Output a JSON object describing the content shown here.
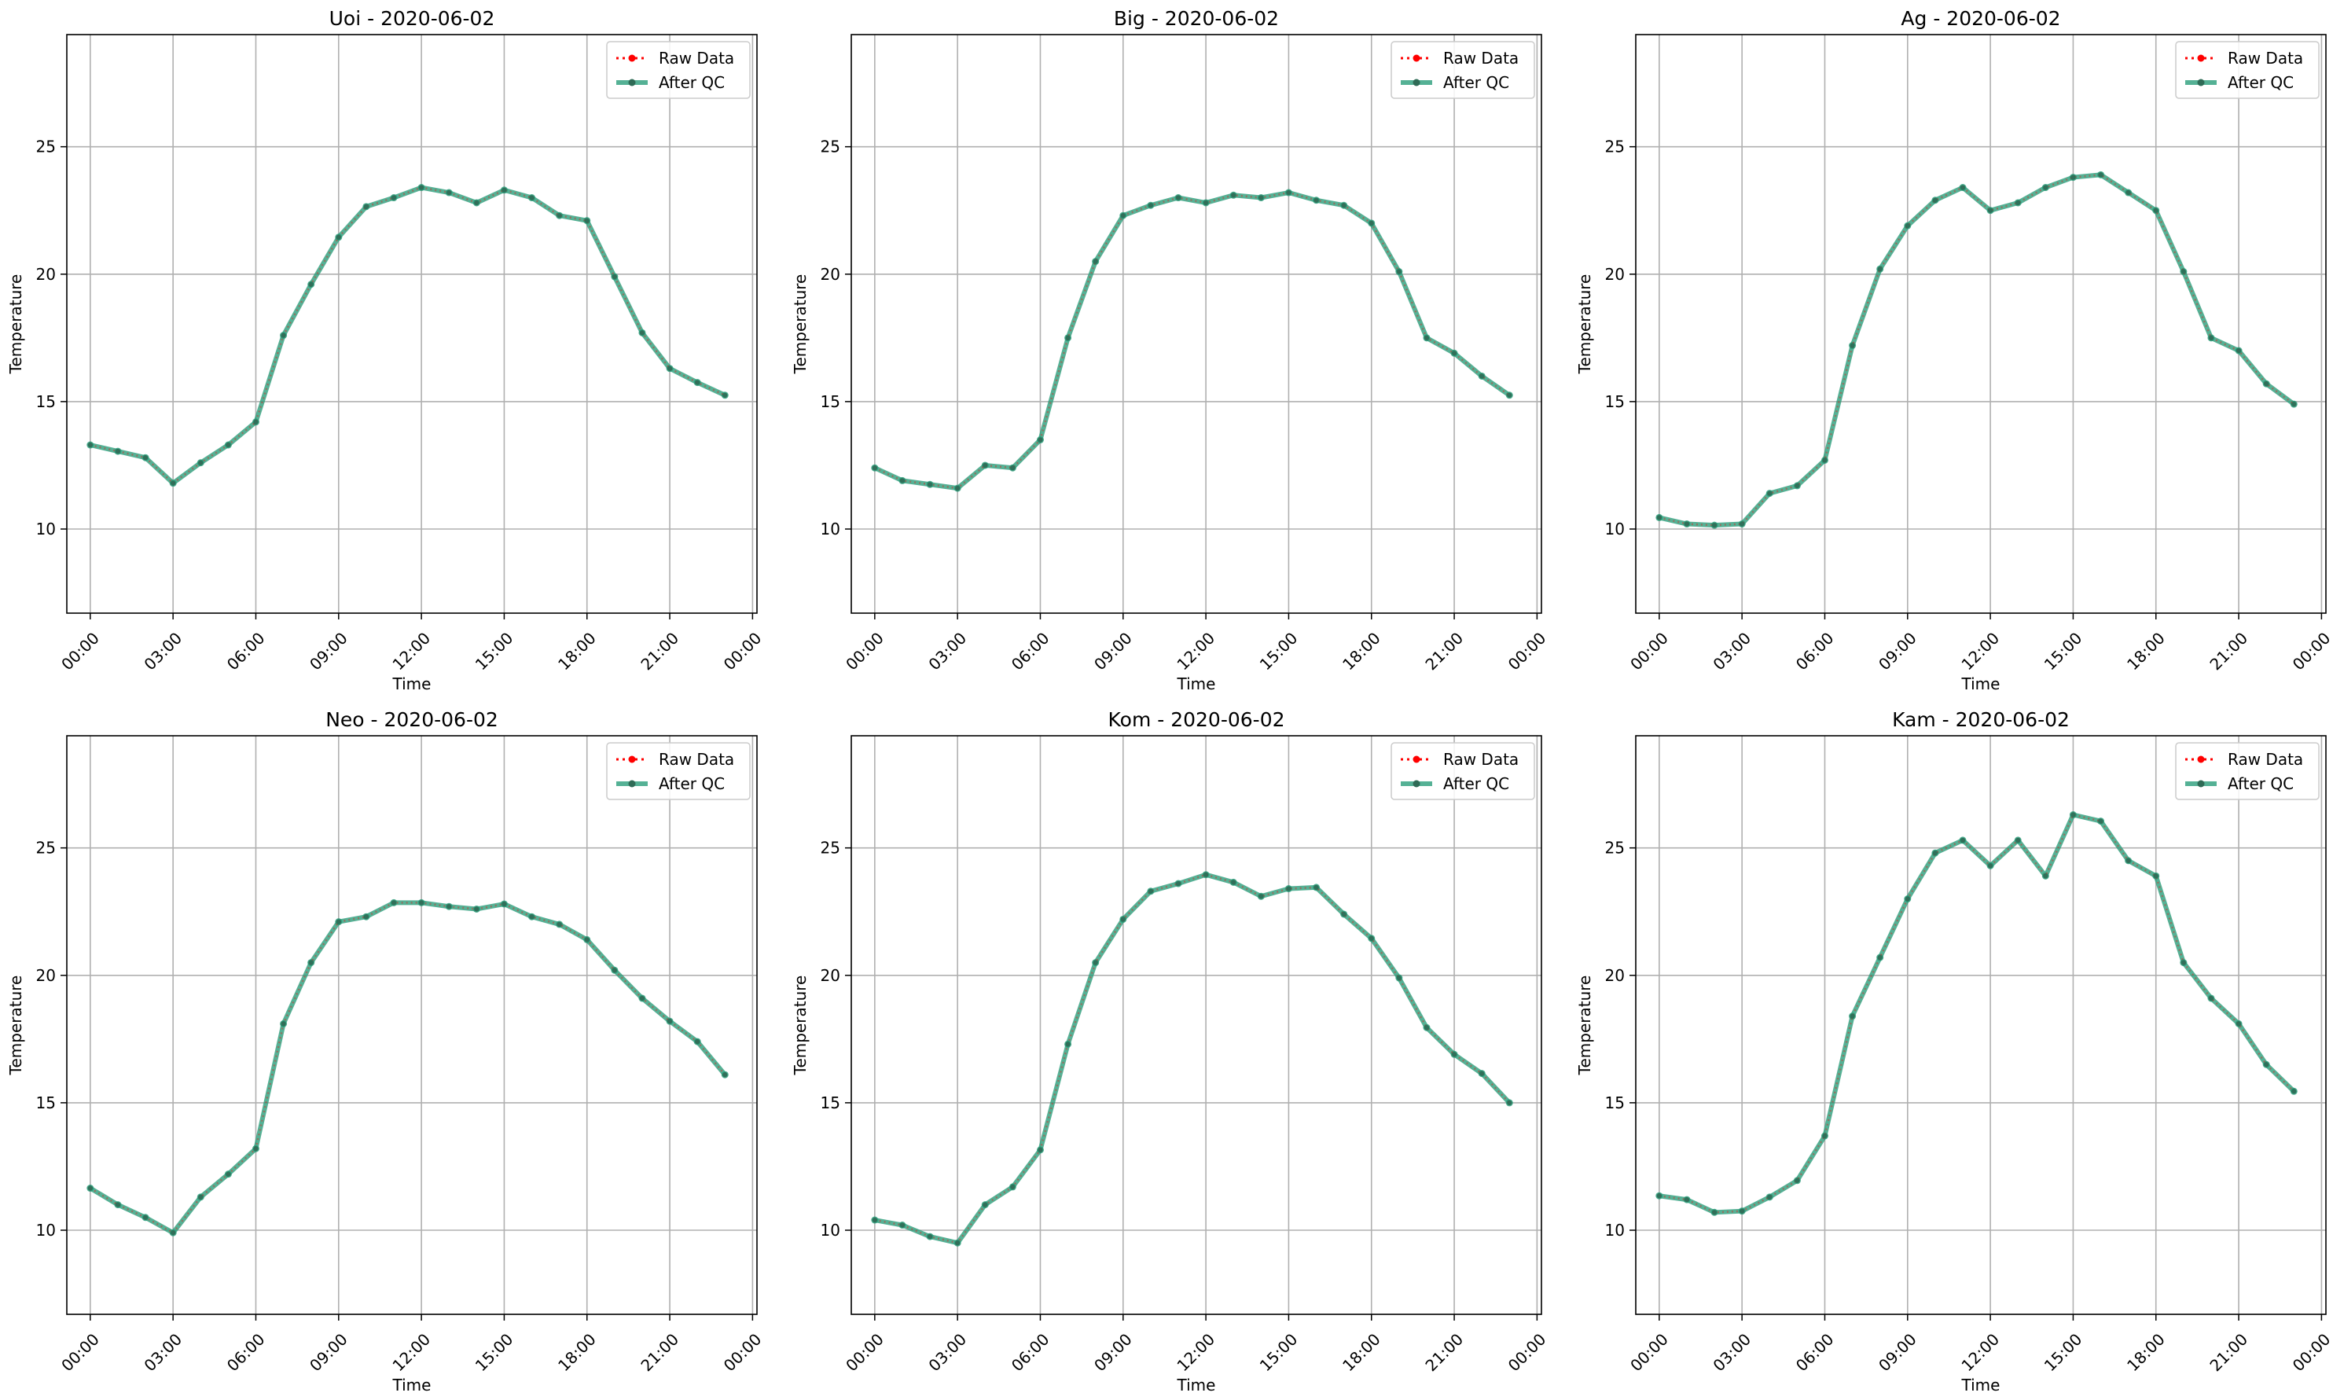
{
  "chart_data": [
    {
      "type": "line",
      "title": "Uoi - 2020-06-02",
      "xlabel": "Time",
      "ylabel": "Temperature",
      "xlim": [
        -0.85,
        24.16
      ],
      "ylim": [
        6.7,
        29.4
      ],
      "x_ticks": [
        0,
        3,
        6,
        9,
        12,
        15,
        18,
        21,
        24
      ],
      "x_tick_labels": [
        "00:00",
        "03:00",
        "06:00",
        "09:00",
        "12:00",
        "15:00",
        "18:00",
        "21:00",
        "00:00"
      ],
      "y_ticks": [
        10,
        15,
        20,
        25
      ],
      "grid": true,
      "legend": "upper right",
      "x": [
        0,
        1,
        2,
        3,
        4,
        5,
        6,
        7,
        8,
        9,
        10,
        11,
        12,
        13,
        14,
        15,
        16,
        17,
        18,
        19,
        20,
        21,
        22,
        23
      ],
      "series": [
        {
          "name": "Raw Data",
          "color": "#ff0000",
          "values": [
            13.3,
            13.05,
            12.8,
            11.8,
            12.6,
            13.3,
            14.2,
            17.6,
            19.6,
            21.45,
            22.65,
            23.0,
            23.4,
            23.2,
            22.8,
            23.3,
            23.0,
            22.3,
            22.1,
            19.9,
            17.7,
            16.3,
            15.75,
            15.25
          ]
        },
        {
          "name": "After QC",
          "color": "#2a9d7a",
          "values": [
            13.3,
            13.05,
            12.8,
            11.8,
            12.6,
            13.3,
            14.2,
            17.6,
            19.6,
            21.45,
            22.65,
            23.0,
            23.4,
            23.2,
            22.8,
            23.3,
            23.0,
            22.3,
            22.1,
            19.9,
            17.7,
            16.3,
            15.75,
            15.25
          ]
        }
      ]
    },
    {
      "type": "line",
      "title": "Big - 2020-06-02",
      "xlabel": "Time",
      "ylabel": "Temperature",
      "xlim": [
        -0.85,
        24.16
      ],
      "ylim": [
        6.7,
        29.4
      ],
      "x_ticks": [
        0,
        3,
        6,
        9,
        12,
        15,
        18,
        21,
        24
      ],
      "x_tick_labels": [
        "00:00",
        "03:00",
        "06:00",
        "09:00",
        "12:00",
        "15:00",
        "18:00",
        "21:00",
        "00:00"
      ],
      "y_ticks": [
        10,
        15,
        20,
        25
      ],
      "grid": true,
      "legend": "upper right",
      "x": [
        0,
        1,
        2,
        3,
        4,
        5,
        6,
        7,
        8,
        9,
        10,
        11,
        12,
        13,
        14,
        15,
        16,
        17,
        18,
        19,
        20,
        21,
        22,
        23
      ],
      "series": [
        {
          "name": "Raw Data",
          "color": "#ff0000",
          "values": [
            12.4,
            11.9,
            11.75,
            11.6,
            12.5,
            12.4,
            13.5,
            17.5,
            20.5,
            22.3,
            22.7,
            23.0,
            22.8,
            23.1,
            23.0,
            23.2,
            22.9,
            22.7,
            22.0,
            20.1,
            17.5,
            16.9,
            16.0,
            15.25
          ]
        },
        {
          "name": "After QC",
          "color": "#2a9d7a",
          "values": [
            12.4,
            11.9,
            11.75,
            11.6,
            12.5,
            12.4,
            13.5,
            17.5,
            20.5,
            22.3,
            22.7,
            23.0,
            22.8,
            23.1,
            23.0,
            23.2,
            22.9,
            22.7,
            22.0,
            20.1,
            17.5,
            16.9,
            16.0,
            15.25
          ]
        }
      ]
    },
    {
      "type": "line",
      "title": "Ag - 2020-06-02",
      "xlabel": "Time",
      "ylabel": "Temperature",
      "xlim": [
        -0.85,
        24.16
      ],
      "ylim": [
        6.7,
        29.4
      ],
      "x_ticks": [
        0,
        3,
        6,
        9,
        12,
        15,
        18,
        21,
        24
      ],
      "x_tick_labels": [
        "00:00",
        "03:00",
        "06:00",
        "09:00",
        "12:00",
        "15:00",
        "18:00",
        "21:00",
        "00:00"
      ],
      "y_ticks": [
        10,
        15,
        20,
        25
      ],
      "grid": true,
      "legend": "upper right",
      "x": [
        0,
        1,
        2,
        3,
        4,
        5,
        6,
        7,
        8,
        9,
        10,
        11,
        12,
        13,
        14,
        15,
        16,
        17,
        18,
        19,
        20,
        21,
        22,
        23
      ],
      "series": [
        {
          "name": "Raw Data",
          "color": "#ff0000",
          "values": [
            10.45,
            10.2,
            10.15,
            10.2,
            11.4,
            11.7,
            12.7,
            17.2,
            20.2,
            21.9,
            22.9,
            23.4,
            22.5,
            22.8,
            23.4,
            23.8,
            23.9,
            23.2,
            22.5,
            20.1,
            17.5,
            17.0,
            15.7,
            14.9
          ]
        },
        {
          "name": "After QC",
          "color": "#2a9d7a",
          "values": [
            10.45,
            10.2,
            10.15,
            10.2,
            11.4,
            11.7,
            12.7,
            17.2,
            20.2,
            21.9,
            22.9,
            23.4,
            22.5,
            22.8,
            23.4,
            23.8,
            23.9,
            23.2,
            22.5,
            20.1,
            17.5,
            17.0,
            15.7,
            14.9
          ]
        }
      ]
    },
    {
      "type": "line",
      "title": "Neo - 2020-06-02",
      "xlabel": "Time",
      "ylabel": "Temperature",
      "xlim": [
        -0.85,
        24.16
      ],
      "ylim": [
        6.7,
        29.4
      ],
      "x_ticks": [
        0,
        3,
        6,
        9,
        12,
        15,
        18,
        21,
        24
      ],
      "x_tick_labels": [
        "00:00",
        "03:00",
        "06:00",
        "09:00",
        "12:00",
        "15:00",
        "18:00",
        "21:00",
        "00:00"
      ],
      "y_ticks": [
        10,
        15,
        20,
        25
      ],
      "grid": true,
      "legend": "upper right",
      "x": [
        0,
        1,
        2,
        3,
        4,
        5,
        6,
        7,
        8,
        9,
        10,
        11,
        12,
        13,
        14,
        15,
        16,
        17,
        18,
        19,
        20,
        21,
        22,
        23
      ],
      "series": [
        {
          "name": "Raw Data",
          "color": "#ff0000",
          "values": [
            11.65,
            11.0,
            10.5,
            9.9,
            11.3,
            12.2,
            13.2,
            18.1,
            20.5,
            22.1,
            22.3,
            22.85,
            22.85,
            22.7,
            22.6,
            22.8,
            22.3,
            22.0,
            21.4,
            20.2,
            19.1,
            18.2,
            17.4,
            16.1
          ]
        },
        {
          "name": "After QC",
          "color": "#2a9d7a",
          "values": [
            11.65,
            11.0,
            10.5,
            9.9,
            11.3,
            12.2,
            13.2,
            18.1,
            20.5,
            22.1,
            22.3,
            22.85,
            22.85,
            22.7,
            22.6,
            22.8,
            22.3,
            22.0,
            21.4,
            20.2,
            19.1,
            18.2,
            17.4,
            16.1
          ]
        }
      ]
    },
    {
      "type": "line",
      "title": "Kom - 2020-06-02",
      "xlabel": "Time",
      "ylabel": "Temperature",
      "xlim": [
        -0.85,
        24.16
      ],
      "ylim": [
        6.7,
        29.4
      ],
      "x_ticks": [
        0,
        3,
        6,
        9,
        12,
        15,
        18,
        21,
        24
      ],
      "x_tick_labels": [
        "00:00",
        "03:00",
        "06:00",
        "09:00",
        "12:00",
        "15:00",
        "18:00",
        "21:00",
        "00:00"
      ],
      "y_ticks": [
        10,
        15,
        20,
        25
      ],
      "grid": true,
      "legend": "upper right",
      "x": [
        0,
        1,
        2,
        3,
        4,
        5,
        6,
        7,
        8,
        9,
        10,
        11,
        12,
        13,
        14,
        15,
        16,
        17,
        18,
        19,
        20,
        21,
        22,
        23
      ],
      "series": [
        {
          "name": "Raw Data",
          "color": "#ff0000",
          "values": [
            10.4,
            10.2,
            9.75,
            9.5,
            11.0,
            11.7,
            13.15,
            17.3,
            20.5,
            22.2,
            23.3,
            23.6,
            23.95,
            23.65,
            23.1,
            23.4,
            23.45,
            22.4,
            21.45,
            19.9,
            17.95,
            16.9,
            16.15,
            15.0
          ]
        },
        {
          "name": "After QC",
          "color": "#2a9d7a",
          "values": [
            10.4,
            10.2,
            9.75,
            9.5,
            11.0,
            11.7,
            13.15,
            17.3,
            20.5,
            22.2,
            23.3,
            23.6,
            23.95,
            23.65,
            23.1,
            23.4,
            23.45,
            22.4,
            21.45,
            19.9,
            17.95,
            16.9,
            16.15,
            15.0
          ]
        }
      ]
    },
    {
      "type": "line",
      "title": "Kam - 2020-06-02",
      "xlabel": "Time",
      "ylabel": "Temperature",
      "xlim": [
        -0.85,
        24.16
      ],
      "ylim": [
        6.7,
        29.4
      ],
      "x_ticks": [
        0,
        3,
        6,
        9,
        12,
        15,
        18,
        21,
        24
      ],
      "x_tick_labels": [
        "00:00",
        "03:00",
        "06:00",
        "09:00",
        "12:00",
        "15:00",
        "18:00",
        "21:00",
        "00:00"
      ],
      "y_ticks": [
        10,
        15,
        20,
        25
      ],
      "grid": true,
      "legend": "upper right",
      "x": [
        0,
        1,
        2,
        3,
        4,
        5,
        6,
        7,
        8,
        9,
        10,
        11,
        12,
        13,
        14,
        15,
        16,
        17,
        18,
        19,
        20,
        21,
        22,
        23
      ],
      "series": [
        {
          "name": "Raw Data",
          "color": "#ff0000",
          "values": [
            11.35,
            11.2,
            10.7,
            10.75,
            11.3,
            11.95,
            13.7,
            18.4,
            20.7,
            23.0,
            24.8,
            25.3,
            24.3,
            25.3,
            23.9,
            26.3,
            26.05,
            24.5,
            23.9,
            20.5,
            19.1,
            18.1,
            16.5,
            15.45
          ]
        },
        {
          "name": "After QC",
          "color": "#2a9d7a",
          "values": [
            11.35,
            11.2,
            10.7,
            10.75,
            11.3,
            11.95,
            13.7,
            18.4,
            20.7,
            23.0,
            24.8,
            25.3,
            24.3,
            25.3,
            23.9,
            26.3,
            26.05,
            24.5,
            23.9,
            20.5,
            19.1,
            18.1,
            16.5,
            15.45
          ]
        }
      ]
    }
  ]
}
